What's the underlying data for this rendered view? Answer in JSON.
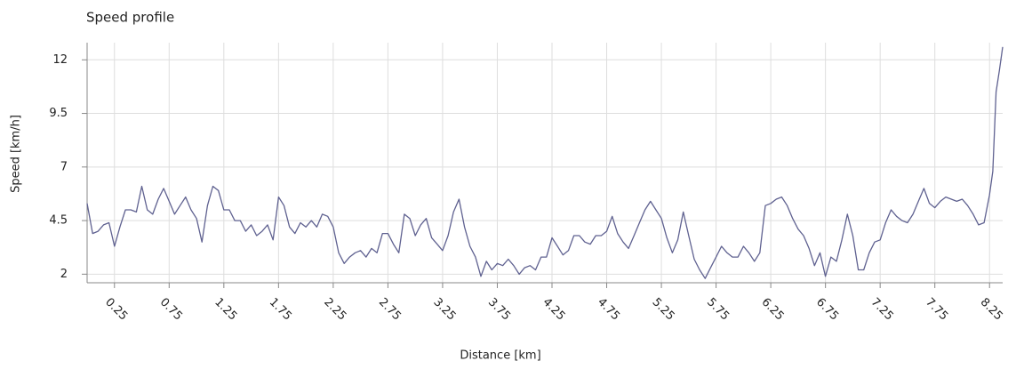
{
  "chart_data": {
    "type": "line",
    "title": "Speed profile",
    "x_label": "Distance [km]",
    "y_label": "Speed [km/h]",
    "x": [
      0,
      0.05,
      0.1,
      0.15,
      0.2,
      0.25,
      0.3,
      0.35,
      0.4,
      0.45,
      0.5,
      0.55,
      0.6,
      0.65,
      0.7,
      0.75,
      0.8,
      0.85,
      0.9,
      0.95,
      1.0,
      1.05,
      1.1,
      1.15,
      1.2,
      1.25,
      1.3,
      1.35,
      1.4,
      1.45,
      1.5,
      1.55,
      1.6,
      1.65,
      1.7,
      1.75,
      1.8,
      1.85,
      1.9,
      1.95,
      2.0,
      2.05,
      2.1,
      2.15,
      2.2,
      2.25,
      2.3,
      2.35,
      2.4,
      2.45,
      2.5,
      2.55,
      2.6,
      2.65,
      2.7,
      2.75,
      2.8,
      2.85,
      2.9,
      2.95,
      3.0,
      3.05,
      3.1,
      3.15,
      3.2,
      3.25,
      3.3,
      3.35,
      3.4,
      3.45,
      3.5,
      3.55,
      3.6,
      3.65,
      3.7,
      3.75,
      3.8,
      3.85,
      3.9,
      3.95,
      4.0,
      4.05,
      4.1,
      4.15,
      4.2,
      4.25,
      4.3,
      4.35,
      4.4,
      4.45,
      4.5,
      4.55,
      4.6,
      4.65,
      4.7,
      4.75,
      4.8,
      4.85,
      4.9,
      4.95,
      5.0,
      5.05,
      5.1,
      5.15,
      5.2,
      5.25,
      5.3,
      5.35,
      5.4,
      5.45,
      5.5,
      5.55,
      5.6,
      5.65,
      5.7,
      5.75,
      5.8,
      5.85,
      5.9,
      5.95,
      6.0,
      6.05,
      6.1,
      6.15,
      6.2,
      6.25,
      6.3,
      6.35,
      6.4,
      6.45,
      6.5,
      6.55,
      6.6,
      6.65,
      6.7,
      6.75,
      6.8,
      6.85,
      6.9,
      6.95,
      7.0,
      7.05,
      7.1,
      7.15,
      7.2,
      7.25,
      7.3,
      7.35,
      7.4,
      7.45,
      7.5,
      7.55,
      7.6,
      7.65,
      7.7,
      7.75,
      7.8,
      7.85,
      7.9,
      7.95,
      8.0,
      8.05,
      8.1,
      8.15,
      8.2,
      8.25,
      8.28,
      8.31,
      8.34,
      8.37
    ],
    "series": [
      {
        "color": "#5f6190",
        "values": [
          5.3,
          3.9,
          4.0,
          4.3,
          4.4,
          3.3,
          4.2,
          5.0,
          5.0,
          4.9,
          6.1,
          5.0,
          4.8,
          5.5,
          6.0,
          5.4,
          4.8,
          5.2,
          5.6,
          5.0,
          4.6,
          3.5,
          5.2,
          6.1,
          5.9,
          5.0,
          5.0,
          4.5,
          4.5,
          4.0,
          4.3,
          3.8,
          4.0,
          4.3,
          3.6,
          5.6,
          5.2,
          4.2,
          3.9,
          4.4,
          4.2,
          4.5,
          4.2,
          4.8,
          4.7,
          4.2,
          3.0,
          2.5,
          2.8,
          3.0,
          3.1,
          2.8,
          3.2,
          3.0,
          3.9,
          3.9,
          3.4,
          3.0,
          4.8,
          4.6,
          3.8,
          4.3,
          4.6,
          3.7,
          3.4,
          3.1,
          3.8,
          4.9,
          5.5,
          4.2,
          3.3,
          2.8,
          1.9,
          2.6,
          2.2,
          2.5,
          2.4,
          2.7,
          2.4,
          2.0,
          2.3,
          2.4,
          2.2,
          2.8,
          2.8,
          3.7,
          3.3,
          2.9,
          3.1,
          3.8,
          3.8,
          3.5,
          3.4,
          3.8,
          3.8,
          4.0,
          4.7,
          3.9,
          3.5,
          3.2,
          3.8,
          4.4,
          5.0,
          5.4,
          5.0,
          4.6,
          3.7,
          3.0,
          3.6,
          4.9,
          3.8,
          2.7,
          2.2,
          1.8,
          2.3,
          2.8,
          3.3,
          3.0,
          2.8,
          2.8,
          3.3,
          3.0,
          2.6,
          3.0,
          5.2,
          5.3,
          5.5,
          5.6,
          5.2,
          4.6,
          4.1,
          3.8,
          3.2,
          2.4,
          3.0,
          1.9,
          2.8,
          2.6,
          3.6,
          4.8,
          3.8,
          2.2,
          2.2,
          3.0,
          3.5,
          3.6,
          4.4,
          5.0,
          4.7,
          4.5,
          4.4,
          4.8,
          5.4,
          6.0,
          5.3,
          5.1,
          5.4,
          5.6,
          5.5,
          5.4,
          5.5,
          5.2,
          4.8,
          4.3,
          4.4,
          5.7,
          6.8,
          10.5,
          11.5,
          12.6
        ]
      }
    ],
    "xlim": [
      0,
      8.37
    ],
    "xticks": [
      0.25,
      0.75,
      1.25,
      1.75,
      2.25,
      2.75,
      3.25,
      3.75,
      4.25,
      4.75,
      5.25,
      5.75,
      6.25,
      6.75,
      7.25,
      7.75,
      8.25
    ],
    "ylim": [
      1.6,
      12.8
    ],
    "yticks": [
      2,
      4.5,
      7,
      9.5,
      12
    ],
    "grid": true
  }
}
